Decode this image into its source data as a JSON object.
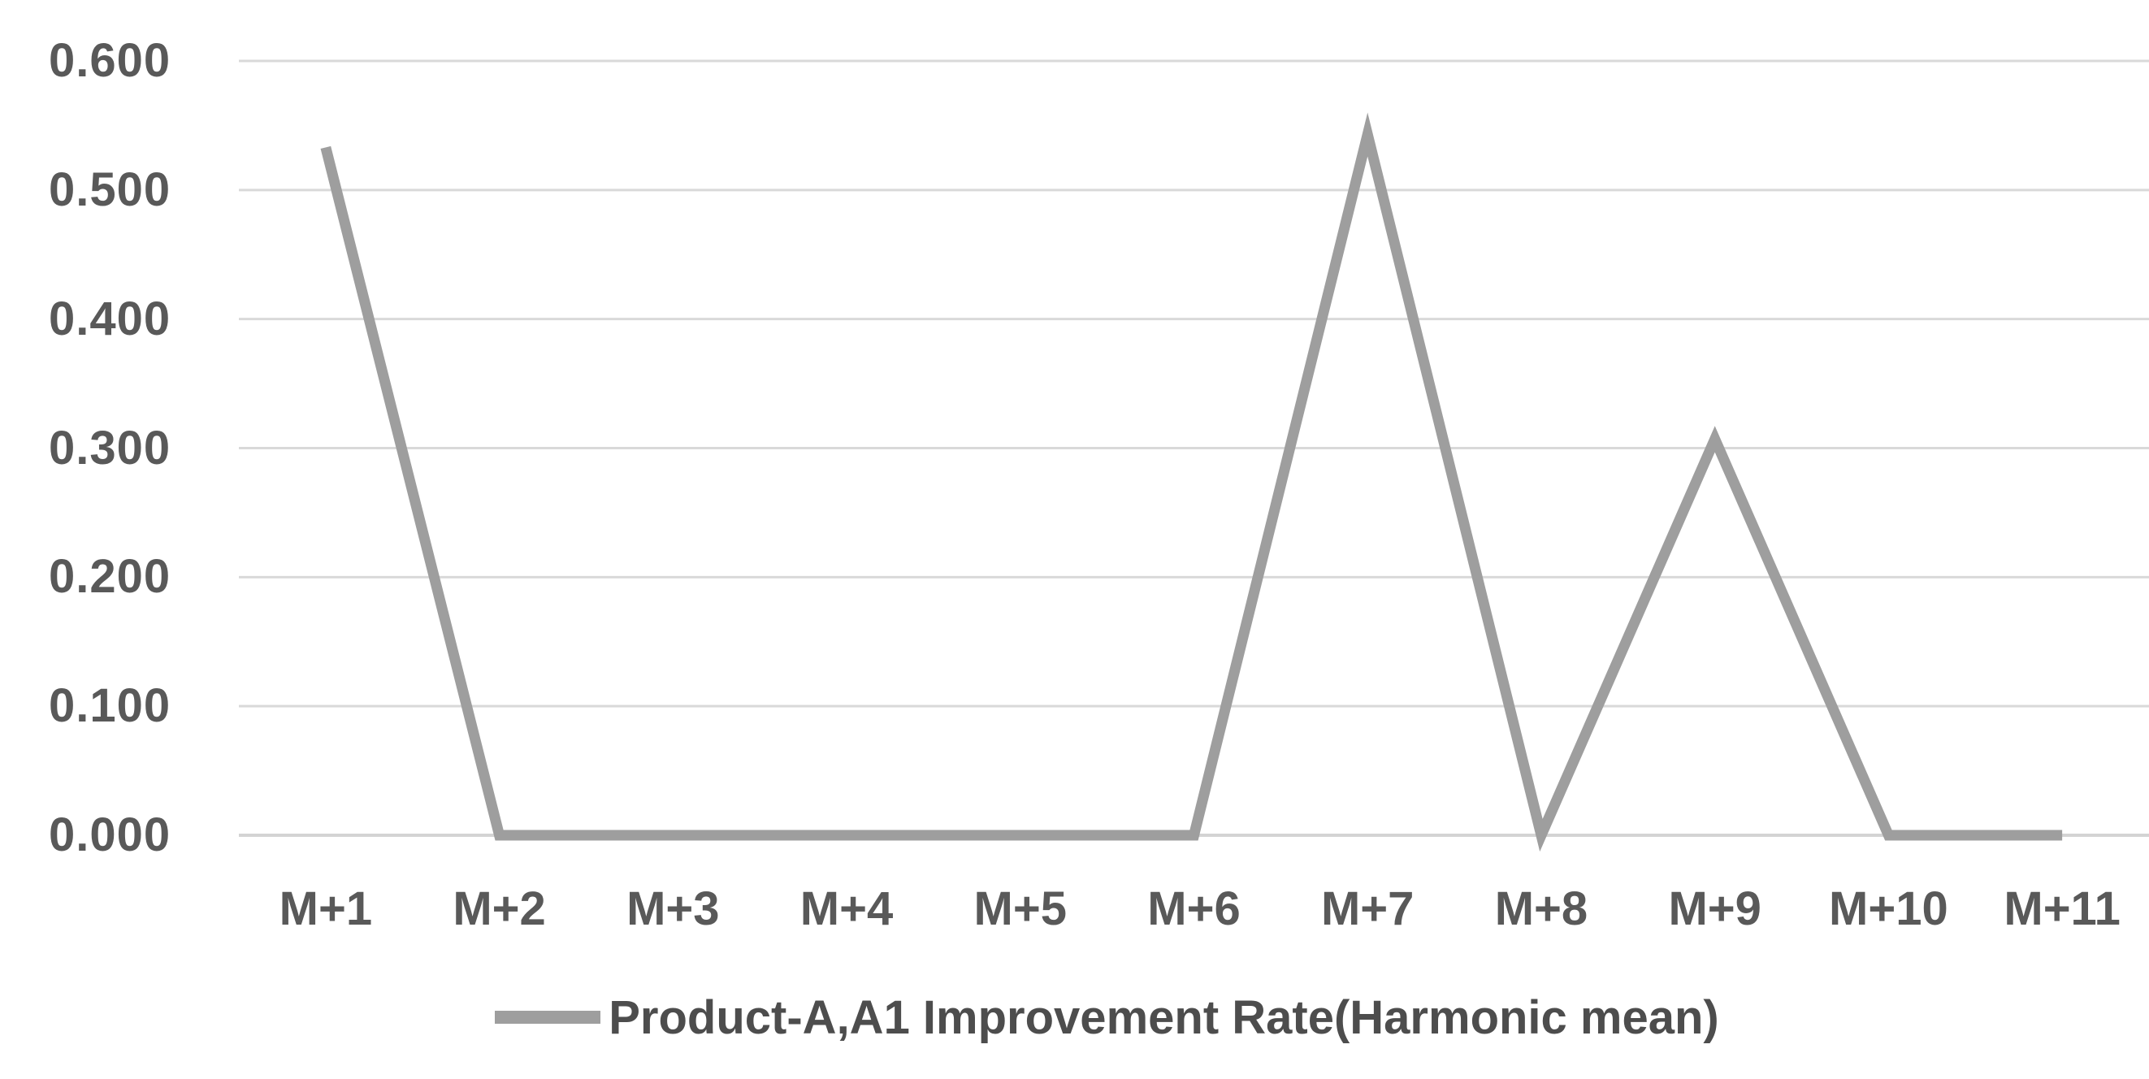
{
  "chart_data": {
    "type": "line",
    "categories": [
      "M+1",
      "M+2",
      "M+3",
      "M+4",
      "M+5",
      "M+6",
      "M+7",
      "M+8",
      "M+9",
      "M+10",
      "M+11"
    ],
    "series": [
      {
        "name": "Product-A,A1 Improvement Rate(Harmonic mean)",
        "values": [
          0.533,
          0.0,
          0.0,
          0.0,
          0.0,
          0.0,
          0.543,
          0.0,
          0.307,
          0.0,
          0.0
        ]
      }
    ],
    "title": "",
    "xlabel": "",
    "ylabel": "",
    "ylim": [
      0,
      0.6
    ],
    "y_tick_labels": [
      "0.600",
      "0.500",
      "0.400",
      "0.300",
      "0.200",
      "0.100",
      "0.000"
    ],
    "grid": true,
    "legend_position": "bottom-center",
    "colors": {
      "line": "#9e9e9e",
      "gridline": "#d9d9d9",
      "axis_line": "#d4d4d4",
      "tick_label": "#595959",
      "legend_text": "#4d4d4d",
      "background": "#ffffff"
    }
  }
}
